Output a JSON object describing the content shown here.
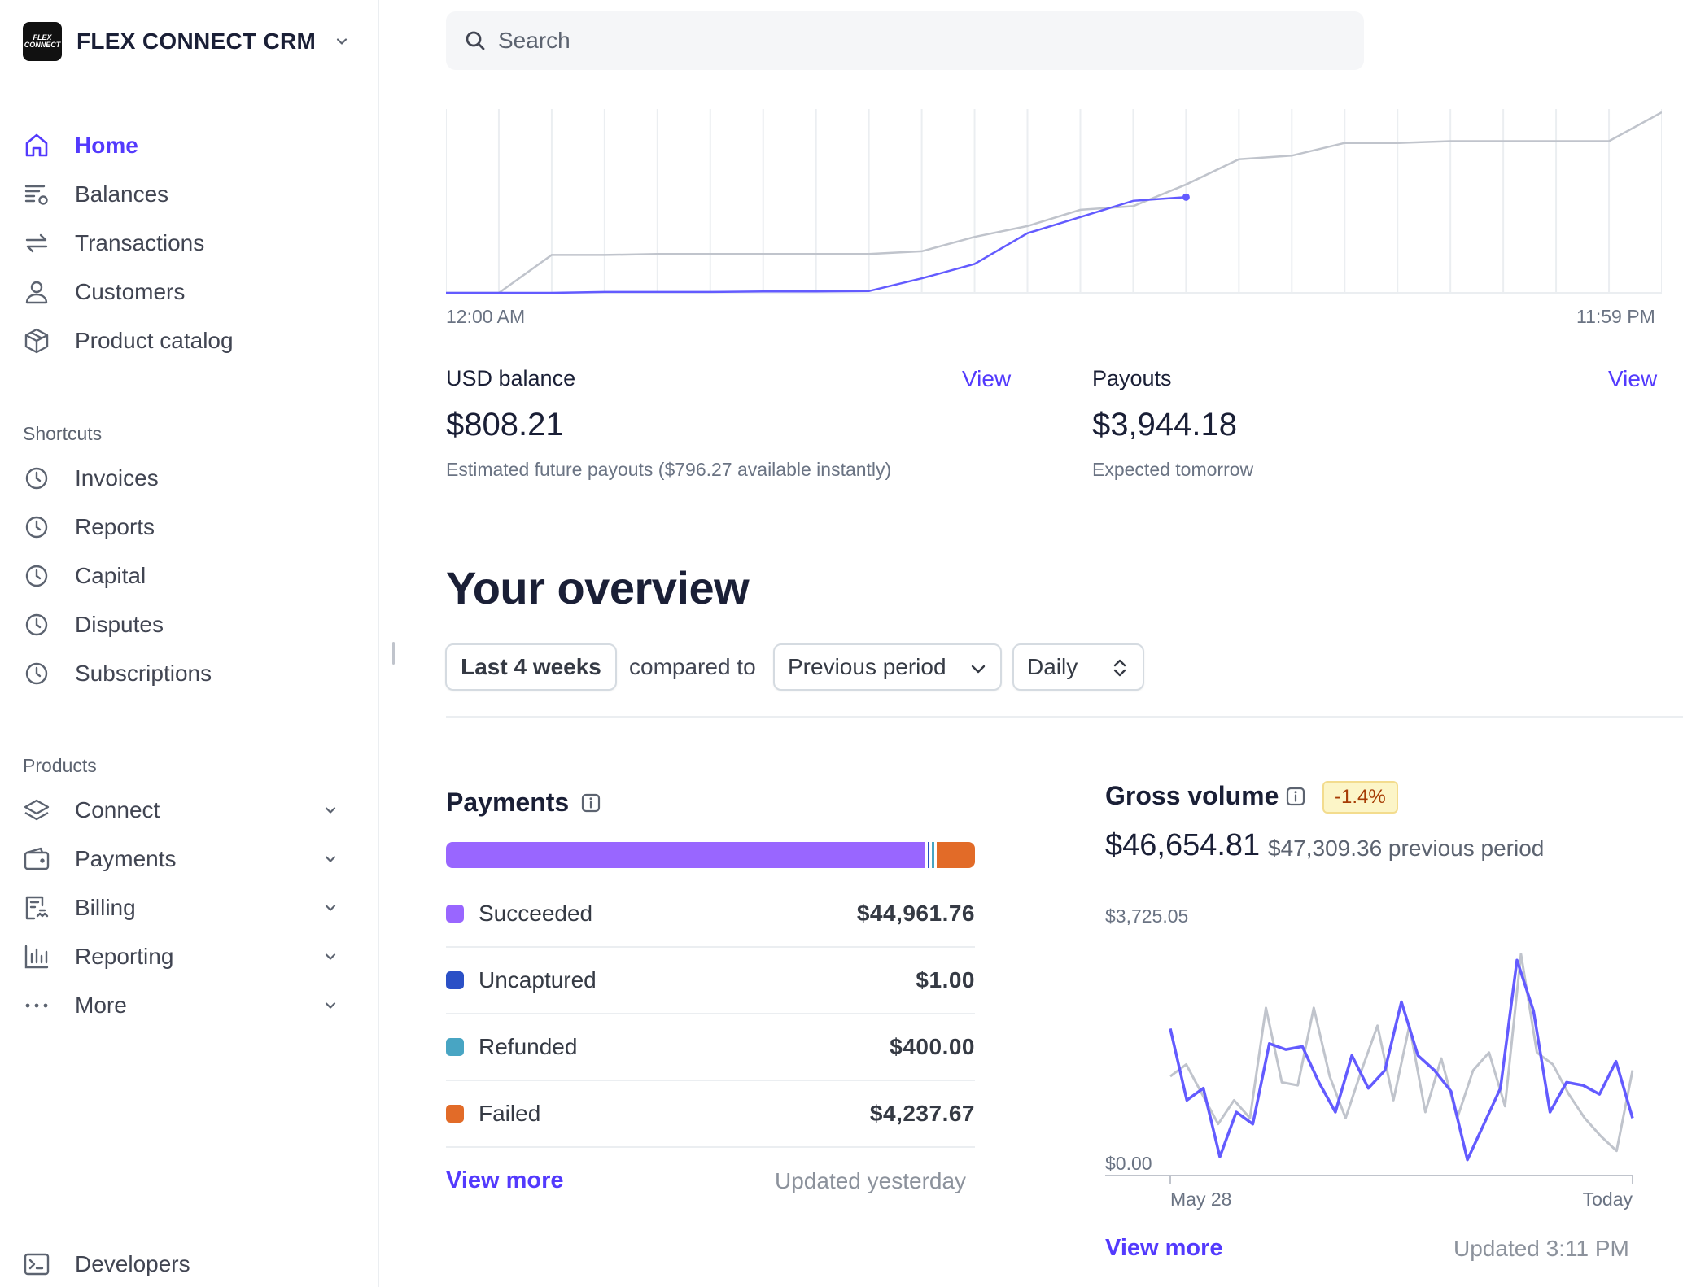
{
  "brand": {
    "name": "FLEX CONNECT CRM",
    "logo_text": "FLEX CONNECT"
  },
  "nav": {
    "main": [
      {
        "label": "Home",
        "icon": "home-icon",
        "active": true
      },
      {
        "label": "Balances",
        "icon": "balances-icon"
      },
      {
        "label": "Transactions",
        "icon": "arrows-exchange-icon"
      },
      {
        "label": "Customers",
        "icon": "person-icon"
      },
      {
        "label": "Product catalog",
        "icon": "box-icon"
      }
    ],
    "shortcuts_label": "Shortcuts",
    "shortcuts": [
      {
        "label": "Invoices",
        "icon": "clock-icon"
      },
      {
        "label": "Reports",
        "icon": "clock-icon"
      },
      {
        "label": "Capital",
        "icon": "clock-icon"
      },
      {
        "label": "Disputes",
        "icon": "clock-icon"
      },
      {
        "label": "Subscriptions",
        "icon": "clock-icon"
      }
    ],
    "products_label": "Products",
    "products": [
      {
        "label": "Connect",
        "icon": "layers-icon"
      },
      {
        "label": "Payments",
        "icon": "wallet-icon"
      },
      {
        "label": "Billing",
        "icon": "billing-icon"
      },
      {
        "label": "Reporting",
        "icon": "bar-chart-icon"
      },
      {
        "label": "More",
        "icon": "more-dots-icon"
      }
    ],
    "developers": {
      "label": "Developers",
      "icon": "terminal-icon"
    }
  },
  "search": {
    "placeholder": "Search"
  },
  "today_chart": {
    "start_label": "12:00 AM",
    "end_label": "11:59 PM",
    "colors": {
      "today": "#635bff",
      "previous": "#c0c4cc",
      "grid": "#ebeef1"
    },
    "today_series": [
      0,
      0,
      0,
      0.5,
      0.5,
      0.5,
      0.8,
      0.8,
      1,
      8,
      16,
      33,
      42,
      51,
      53
    ],
    "previous_series": [
      0,
      0,
      21,
      21,
      21.5,
      21.5,
      21.5,
      21.5,
      21.5,
      23,
      31,
      37,
      46,
      48,
      60,
      74,
      76,
      83,
      83,
      84,
      84,
      84,
      84,
      100
    ]
  },
  "balance": {
    "title": "USD balance",
    "link": "View",
    "value": "$808.21",
    "sub": "Estimated future payouts ($796.27 available instantly)"
  },
  "payouts": {
    "title": "Payouts",
    "link": "View",
    "value": "$3,944.18",
    "sub": "Expected tomorrow"
  },
  "overview": {
    "title": "Your overview",
    "range": "Last 4 weeks",
    "compared_to": "compared to",
    "period": "Previous period",
    "interval": "Daily"
  },
  "payments": {
    "title": "Payments",
    "rows": [
      {
        "label": "Succeeded",
        "amount": "$44,961.76",
        "value": 44961.76,
        "color": "#9966ff"
      },
      {
        "label": "Uncaptured",
        "amount": "$1.00",
        "value": 1.0,
        "color": "#2b50c6"
      },
      {
        "label": "Refunded",
        "amount": "$400.00",
        "value": 400.0,
        "color": "#48a5c3"
      },
      {
        "label": "Failed",
        "amount": "$4,237.67",
        "value": 4237.67,
        "color": "#e26b28"
      }
    ],
    "view_more": "View more",
    "updated": "Updated yesterday"
  },
  "gross_volume": {
    "title": "Gross volume",
    "change": "-1.4%",
    "value": "$46,654.81",
    "previous": "$47,309.36 previous period",
    "view_more": "View more",
    "updated": "Updated 3:11 PM",
    "chart_data": {
      "type": "line",
      "ylim": [
        0,
        3725.05
      ],
      "y_tick_labels": [
        "$3,725.05",
        "$0.00"
      ],
      "x_tick_labels": [
        "May 28",
        "Today"
      ],
      "series": [
        {
          "color": "#635bff",
          "values": [
            2300,
            1100,
            1300,
            150,
            900,
            700,
            2050,
            1950,
            2000,
            1400,
            900,
            1850,
            1300,
            1600,
            2750,
            1850,
            1600,
            1250,
            100,
            700,
            1300,
            3450,
            2600,
            900,
            1400,
            1350,
            1200,
            1750,
            800
          ]
        },
        {
          "color": "#c0c4cc",
          "values": [
            1500,
            1700,
            1200,
            700,
            1100,
            800,
            2650,
            1400,
            1350,
            2650,
            1500,
            800,
            1600,
            2350,
            1100,
            2350,
            900,
            1800,
            800,
            1600,
            1900,
            1000,
            3550,
            1900,
            1700,
            1200,
            800,
            500,
            250,
            1600
          ]
        }
      ]
    }
  }
}
